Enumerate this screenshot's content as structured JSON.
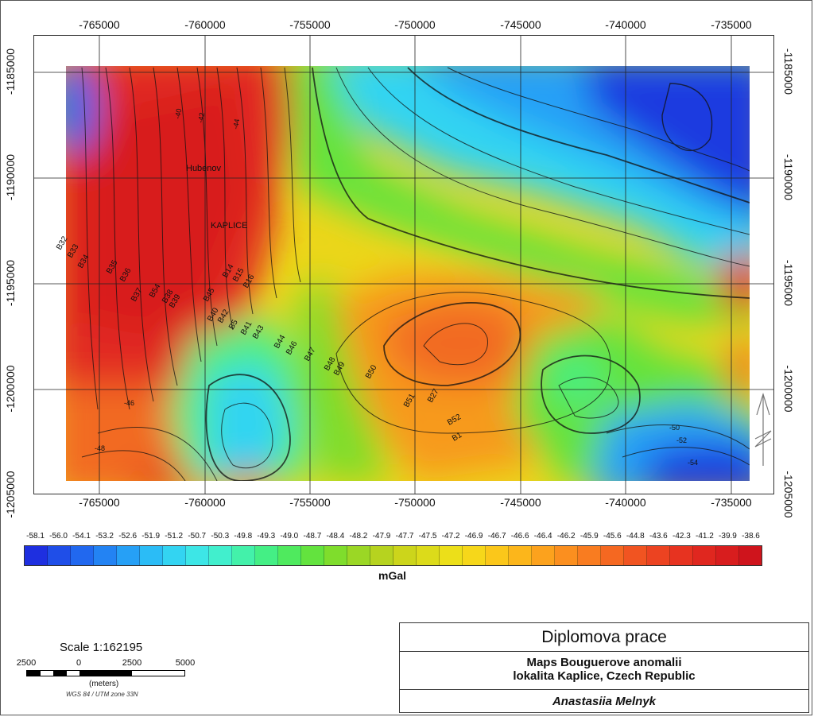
{
  "map": {
    "x_ticks": [
      "-765000",
      "-760000",
      "-755000",
      "-750000",
      "-745000",
      "-740000",
      "-735000"
    ],
    "y_ticks": [
      "-1185000",
      "-1190000",
      "-1195000",
      "-1200000",
      "-1205000"
    ],
    "place_labels": [
      {
        "text": "Hubenov"
      },
      {
        "text": "KAPLICE"
      }
    ],
    "point_labels": [
      "B32",
      "B33",
      "B34",
      "B35",
      "B36",
      "B37",
      "B54",
      "B38",
      "B39",
      "B45",
      "B14",
      "B15",
      "B16",
      "B40",
      "B42",
      "B5",
      "B41",
      "B43",
      "B44",
      "B46",
      "B47",
      "B48",
      "B49",
      "B50",
      "B51",
      "B27",
      "B52",
      "B1"
    ],
    "contour_labels": [
      "-40",
      "-42",
      "-44",
      "-46",
      "-48",
      "-50",
      "-52",
      "-54"
    ]
  },
  "legend": {
    "values": [
      "-58.1",
      "-56.0",
      "-54.1",
      "-53.2",
      "-52.6",
      "-51.9",
      "-51.2",
      "-50.7",
      "-50.3",
      "-49.8",
      "-49.3",
      "-49.0",
      "-48.7",
      "-48.4",
      "-48.2",
      "-47.9",
      "-47.7",
      "-47.5",
      "-47.2",
      "-46.9",
      "-46.7",
      "-46.6",
      "-46.4",
      "-46.2",
      "-45.9",
      "-45.6",
      "-44.8",
      "-43.6",
      "-42.3",
      "-41.2",
      "-39.9",
      "-38.6"
    ],
    "colors": [
      "#1e2fe0",
      "#1f4ee8",
      "#2168ef",
      "#2383f3",
      "#26a0f6",
      "#2bbcf6",
      "#33d4f2",
      "#3de6e6",
      "#41efcd",
      "#43f1aa",
      "#44ef85",
      "#4fea5e",
      "#63e33e",
      "#7fdd2c",
      "#9bd725",
      "#b6d31f",
      "#ccd51b",
      "#dcdb1a",
      "#ecdf19",
      "#f6d71a",
      "#fbc71a",
      "#fcb61b",
      "#fca21d",
      "#fb8f1f",
      "#f97c20",
      "#f56821",
      "#f15421",
      "#ec4321",
      "#e73320",
      "#e0271f",
      "#d81d1e",
      "#cf141c"
    ],
    "units": "mGal"
  },
  "scale": {
    "title": "Scale 1:162195",
    "ticks": [
      "2500",
      "0",
      "2500",
      "5000"
    ],
    "units": "(meters)",
    "projection": "WGS 84 / UTM zone 33N"
  },
  "title_block": {
    "heading": "Diplomova prace",
    "line1": "Maps Bouguerove anomalii",
    "line2": "lokalita Kaplice, Czech Republic",
    "author": "Anastasiia Melnyk"
  }
}
